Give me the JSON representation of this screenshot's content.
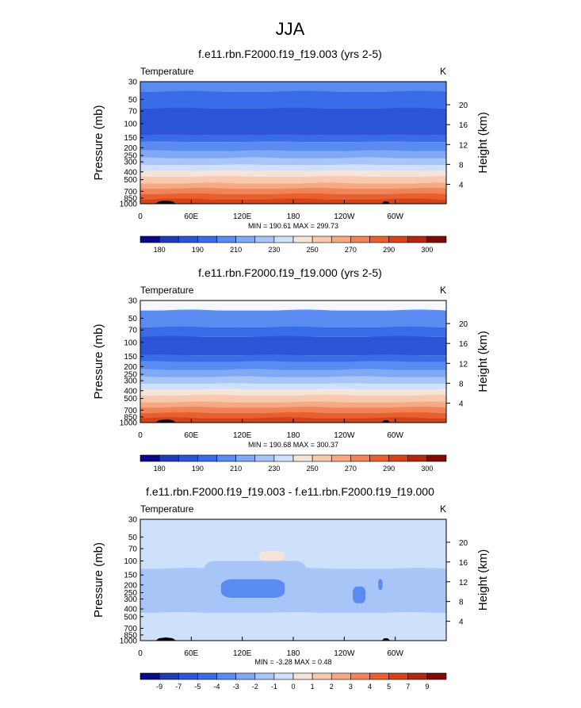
{
  "page": {
    "title": "JJA"
  },
  "chart_data": [
    {
      "type": "heatmap",
      "title": "f.e11.rbn.F2000.f19_f19.003 (yrs 2-5)",
      "left_label": "Temperature",
      "right_label": "K",
      "ylabel": "Pressure (mb)",
      "ylabel_right": "Height (km)",
      "x_ticks": [
        "0",
        "60E",
        "120E",
        "180",
        "120W",
        "60W"
      ],
      "x_tick_lon": [
        0,
        60,
        120,
        180,
        240,
        300
      ],
      "xlim": [
        0,
        360
      ],
      "ylim": [
        1000,
        30
      ],
      "pressure_ticks": [
        30,
        50,
        70,
        100,
        150,
        200,
        250,
        300,
        400,
        500,
        700,
        850,
        1000
      ],
      "height_ticks": [
        4,
        8,
        12,
        16,
        20
      ],
      "stats": "MIN = 190.61  MAX = 299.73",
      "colorbar": {
        "labels": [
          "180",
          "190",
          "210",
          "230",
          "250",
          "270",
          "290",
          "300"
        ],
        "colors": [
          "#08088a",
          "#1f3cb4",
          "#2b55d6",
          "#3a6ce8",
          "#5a8bf0",
          "#80a8f5",
          "#a8c5f8",
          "#cfe0fb",
          "#f6e4d8",
          "#f8c9ad",
          "#f5a882",
          "#f08458",
          "#e8602e",
          "#d6431a",
          "#b02a10",
          "#800a05"
        ]
      },
      "profile": [
        {
          "p": 30,
          "color": "#5a8bf0"
        },
        {
          "p": 40,
          "color": "#3a6ce8"
        },
        {
          "p": 65,
          "color": "#2b55d6"
        },
        {
          "p": 140,
          "color": "#3a6ce8"
        },
        {
          "p": 170,
          "color": "#5a8bf0"
        },
        {
          "p": 220,
          "color": "#80a8f5"
        },
        {
          "p": 270,
          "color": "#a8c5f8"
        },
        {
          "p": 330,
          "color": "#cfe0fb"
        },
        {
          "p": 390,
          "color": "#f6e4d8"
        },
        {
          "p": 460,
          "color": "#f8c9ad"
        },
        {
          "p": 560,
          "color": "#f5a882"
        },
        {
          "p": 650,
          "color": "#f08458"
        },
        {
          "p": 760,
          "color": "#e8602e"
        },
        {
          "p": 880,
          "color": "#d6431a"
        },
        {
          "p": 1000,
          "color": "#d6431a"
        }
      ]
    },
    {
      "type": "heatmap",
      "title": "f.e11.rbn.F2000.f19_f19.000 (yrs 2-5)",
      "left_label": "Temperature",
      "right_label": "K",
      "ylabel": "Pressure (mb)",
      "ylabel_right": "Height (km)",
      "x_ticks": [
        "0",
        "60E",
        "120E",
        "180",
        "120W",
        "60W"
      ],
      "x_tick_lon": [
        0,
        60,
        120,
        180,
        240,
        300
      ],
      "xlim": [
        0,
        360
      ],
      "ylim": [
        1000,
        30
      ],
      "pressure_ticks": [
        30,
        50,
        70,
        100,
        150,
        200,
        250,
        300,
        400,
        500,
        700,
        850,
        1000
      ],
      "height_ticks": [
        4,
        8,
        12,
        16,
        20
      ],
      "stats": "MIN = 190.68  MAX = 300.37",
      "colorbar": {
        "labels": [
          "180",
          "190",
          "210",
          "230",
          "250",
          "270",
          "290",
          "300"
        ],
        "colors": [
          "#08088a",
          "#1f3cb4",
          "#2b55d6",
          "#3a6ce8",
          "#5a8bf0",
          "#80a8f5",
          "#a8c5f8",
          "#cfe0fb",
          "#f6e4d8",
          "#f8c9ad",
          "#f5a882",
          "#f08458",
          "#e8602e",
          "#d6431a",
          "#b02a10",
          "#800a05"
        ]
      },
      "profile": [
        {
          "p": 30,
          "color": "#f4f8fe"
        },
        {
          "p": 40,
          "color": "#5a8bf0"
        },
        {
          "p": 65,
          "color": "#3a6ce8"
        },
        {
          "p": 85,
          "color": "#2b55d6"
        },
        {
          "p": 145,
          "color": "#3a6ce8"
        },
        {
          "p": 175,
          "color": "#5a8bf0"
        },
        {
          "p": 220,
          "color": "#80a8f5"
        },
        {
          "p": 270,
          "color": "#a8c5f8"
        },
        {
          "p": 330,
          "color": "#cfe0fb"
        },
        {
          "p": 390,
          "color": "#f6e4d8"
        },
        {
          "p": 460,
          "color": "#f8c9ad"
        },
        {
          "p": 560,
          "color": "#f5a882"
        },
        {
          "p": 650,
          "color": "#f08458"
        },
        {
          "p": 760,
          "color": "#e8602e"
        },
        {
          "p": 880,
          "color": "#d6431a"
        },
        {
          "p": 1000,
          "color": "#d6431a"
        }
      ]
    },
    {
      "type": "heatmap",
      "title": "f.e11.rbn.F2000.f19_f19.003 - f.e11.rbn.F2000.f19_f19.000",
      "left_label": "Temperature",
      "right_label": "K",
      "ylabel": "Pressure (mb)",
      "ylabel_right": "Height (km)",
      "x_ticks": [
        "0",
        "60E",
        "120E",
        "180",
        "120W",
        "60W"
      ],
      "x_tick_lon": [
        0,
        60,
        120,
        180,
        240,
        300
      ],
      "xlim": [
        0,
        360
      ],
      "ylim": [
        1000,
        30
      ],
      "pressure_ticks": [
        30,
        50,
        70,
        100,
        150,
        200,
        250,
        300,
        400,
        500,
        700,
        850,
        1000
      ],
      "height_ticks": [
        4,
        8,
        12,
        16,
        20
      ],
      "stats": "MIN = -3.28  MAX =  0.48",
      "colorbar": {
        "labels": [
          "-9",
          "-7",
          "-5",
          "-4",
          "-3",
          "-2",
          "-1",
          "0",
          "1",
          "2",
          "3",
          "4",
          "5",
          "7",
          "9"
        ],
        "colors": [
          "#08088a",
          "#1f3cb4",
          "#2b55d6",
          "#3a6ce8",
          "#5a8bf0",
          "#80a8f5",
          "#a8c5f8",
          "#cfe0fb",
          "#f6e4d8",
          "#f8c9ad",
          "#f5a882",
          "#f08458",
          "#e8602e",
          "#d6431a",
          "#b02a10",
          "#800a05"
        ]
      },
      "profile": [
        {
          "p": 30,
          "color": "#cfe0fb"
        },
        {
          "p": 125,
          "color": "#a8c5f8"
        },
        {
          "p": 450,
          "color": "#cfe0fb"
        },
        {
          "p": 1000,
          "color": "#cfe0fb"
        }
      ],
      "blobs": [
        {
          "lon": 75,
          "lon2": 195,
          "p": 100,
          "p2": 440,
          "color": "#a8c5f8"
        },
        {
          "lon": 95,
          "lon2": 170,
          "p": 170,
          "p2": 290,
          "color": "#5a8bf0"
        },
        {
          "lon": 250,
          "lon2": 265,
          "p": 210,
          "p2": 340,
          "color": "#5a8bf0"
        },
        {
          "lon": 280,
          "lon2": 285,
          "p": 170,
          "p2": 230,
          "color": "#5a8bf0"
        },
        {
          "lon": 140,
          "lon2": 170,
          "p": 75,
          "p2": 100,
          "color": "#f6e4d8"
        }
      ]
    }
  ]
}
